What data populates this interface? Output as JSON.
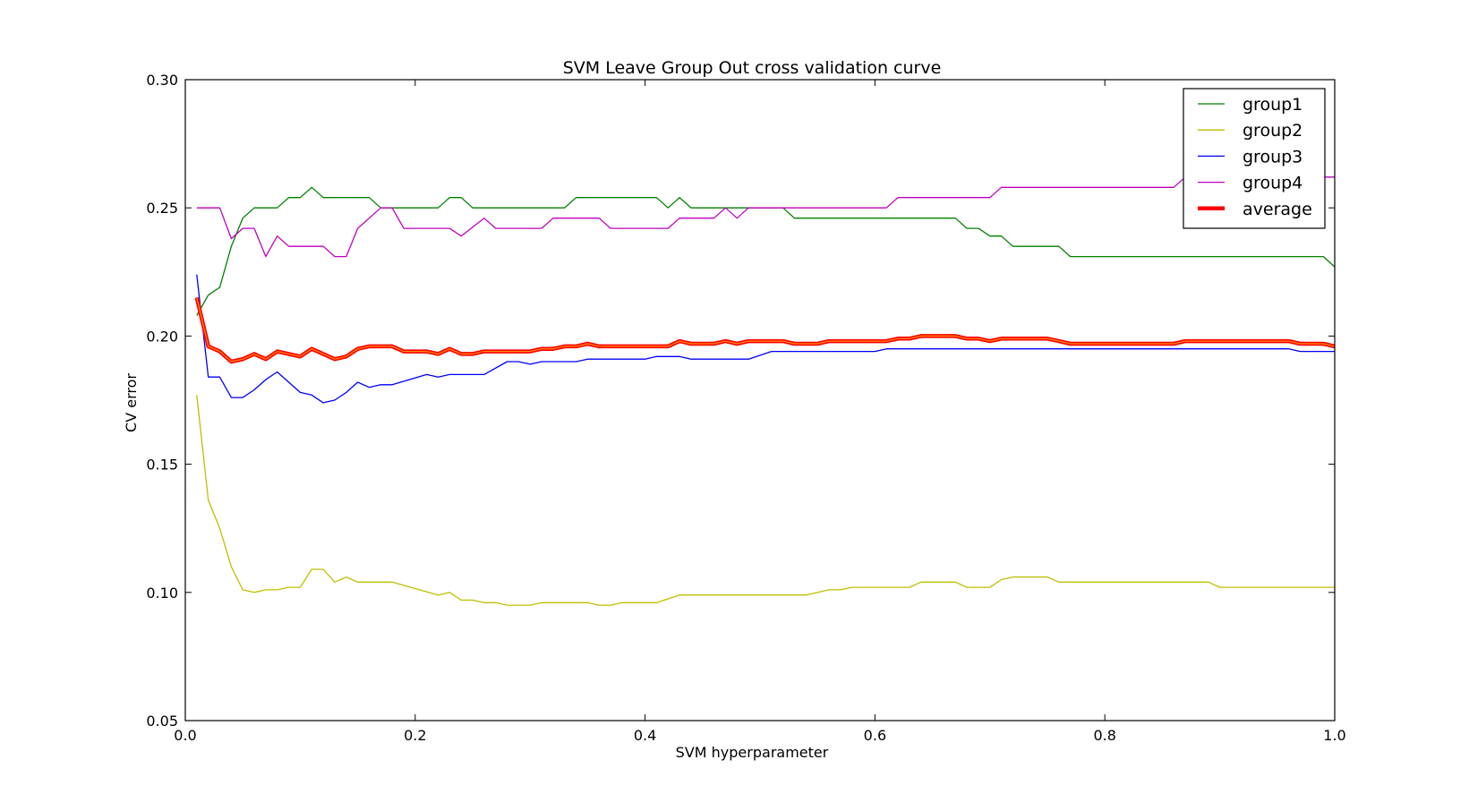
{
  "chart_data": {
    "type": "line",
    "title": "SVM Leave Group Out cross validation curve",
    "xlabel": "SVM hyperparameter",
    "ylabel": "CV error",
    "xlim": [
      0.0,
      1.0
    ],
    "ylim": [
      0.05,
      0.3
    ],
    "xticks": [
      0.0,
      0.2,
      0.4,
      0.6,
      0.8,
      1.0
    ],
    "xtick_labels": [
      "0.0",
      "0.2",
      "0.4",
      "0.6",
      "0.8",
      "1.0"
    ],
    "yticks": [
      0.05,
      0.1,
      0.15,
      0.2,
      0.25,
      0.3
    ],
    "ytick_labels": [
      "0.05",
      "0.10",
      "0.15",
      "0.20",
      "0.25",
      "0.30"
    ],
    "grid": false,
    "legend_position": "top-right",
    "series": [
      {
        "name": "group1",
        "color": "#008000",
        "points": [
          [
            0.01,
            0.208
          ],
          [
            0.02,
            0.216
          ],
          [
            0.03,
            0.219
          ],
          [
            0.04,
            0.235
          ],
          [
            0.05,
            0.246
          ],
          [
            0.06,
            0.25
          ],
          [
            0.08,
            0.25
          ],
          [
            0.09,
            0.254
          ],
          [
            0.1,
            0.254
          ],
          [
            0.11,
            0.258
          ],
          [
            0.12,
            0.254
          ],
          [
            0.16,
            0.254
          ],
          [
            0.17,
            0.25
          ],
          [
            0.22,
            0.25
          ],
          [
            0.23,
            0.254
          ],
          [
            0.24,
            0.254
          ],
          [
            0.25,
            0.25
          ],
          [
            0.33,
            0.25
          ],
          [
            0.34,
            0.254
          ],
          [
            0.41,
            0.254
          ],
          [
            0.42,
            0.25
          ],
          [
            0.43,
            0.254
          ],
          [
            0.44,
            0.25
          ],
          [
            0.52,
            0.25
          ],
          [
            0.53,
            0.246
          ],
          [
            0.67,
            0.246
          ],
          [
            0.68,
            0.242
          ],
          [
            0.69,
            0.242
          ],
          [
            0.7,
            0.239
          ],
          [
            0.71,
            0.239
          ],
          [
            0.72,
            0.235
          ],
          [
            0.76,
            0.235
          ],
          [
            0.77,
            0.231
          ],
          [
            0.99,
            0.231
          ],
          [
            1.0,
            0.227
          ]
        ]
      },
      {
        "name": "group2",
        "color": "#bfbf00",
        "points": [
          [
            0.01,
            0.177
          ],
          [
            0.02,
            0.136
          ],
          [
            0.03,
            0.125
          ],
          [
            0.04,
            0.11
          ],
          [
            0.05,
            0.101
          ],
          [
            0.06,
            0.1
          ],
          [
            0.07,
            0.101
          ],
          [
            0.08,
            0.101
          ],
          [
            0.09,
            0.102
          ],
          [
            0.1,
            0.102
          ],
          [
            0.11,
            0.109
          ],
          [
            0.12,
            0.109
          ],
          [
            0.13,
            0.104
          ],
          [
            0.14,
            0.106
          ],
          [
            0.15,
            0.104
          ],
          [
            0.18,
            0.104
          ],
          [
            0.22,
            0.099
          ],
          [
            0.23,
            0.1
          ],
          [
            0.24,
            0.097
          ],
          [
            0.25,
            0.097
          ],
          [
            0.26,
            0.096
          ],
          [
            0.27,
            0.096
          ],
          [
            0.28,
            0.095
          ],
          [
            0.3,
            0.095
          ],
          [
            0.31,
            0.096
          ],
          [
            0.35,
            0.096
          ],
          [
            0.36,
            0.095
          ],
          [
            0.37,
            0.095
          ],
          [
            0.38,
            0.096
          ],
          [
            0.41,
            0.096
          ],
          [
            0.43,
            0.099
          ],
          [
            0.54,
            0.099
          ],
          [
            0.56,
            0.101
          ],
          [
            0.57,
            0.101
          ],
          [
            0.58,
            0.102
          ],
          [
            0.63,
            0.102
          ],
          [
            0.64,
            0.104
          ],
          [
            0.67,
            0.104
          ],
          [
            0.68,
            0.102
          ],
          [
            0.7,
            0.102
          ],
          [
            0.71,
            0.105
          ],
          [
            0.72,
            0.106
          ],
          [
            0.75,
            0.106
          ],
          [
            0.76,
            0.104
          ],
          [
            0.89,
            0.104
          ],
          [
            0.9,
            0.102
          ],
          [
            1.0,
            0.102
          ]
        ]
      },
      {
        "name": "group3",
        "color": "#0000ff",
        "points": [
          [
            0.01,
            0.224
          ],
          [
            0.02,
            0.184
          ],
          [
            0.03,
            0.184
          ],
          [
            0.04,
            0.176
          ],
          [
            0.05,
            0.176
          ],
          [
            0.06,
            0.179
          ],
          [
            0.07,
            0.183
          ],
          [
            0.08,
            0.186
          ],
          [
            0.09,
            0.182
          ],
          [
            0.1,
            0.178
          ],
          [
            0.11,
            0.177
          ],
          [
            0.12,
            0.174
          ],
          [
            0.13,
            0.175
          ],
          [
            0.14,
            0.178
          ],
          [
            0.15,
            0.182
          ],
          [
            0.16,
            0.18
          ],
          [
            0.17,
            0.181
          ],
          [
            0.18,
            0.181
          ],
          [
            0.21,
            0.185
          ],
          [
            0.22,
            0.184
          ],
          [
            0.23,
            0.185
          ],
          [
            0.26,
            0.185
          ],
          [
            0.28,
            0.19
          ],
          [
            0.29,
            0.19
          ],
          [
            0.3,
            0.189
          ],
          [
            0.31,
            0.19
          ],
          [
            0.34,
            0.19
          ],
          [
            0.35,
            0.191
          ],
          [
            0.4,
            0.191
          ],
          [
            0.41,
            0.192
          ],
          [
            0.43,
            0.192
          ],
          [
            0.44,
            0.191
          ],
          [
            0.49,
            0.191
          ],
          [
            0.51,
            0.194
          ],
          [
            0.6,
            0.194
          ],
          [
            0.61,
            0.195
          ],
          [
            0.96,
            0.195
          ],
          [
            0.97,
            0.194
          ],
          [
            1.0,
            0.194
          ]
        ]
      },
      {
        "name": "group4",
        "color": "#bf00bf",
        "points": [
          [
            0.01,
            0.25
          ],
          [
            0.03,
            0.25
          ],
          [
            0.04,
            0.238
          ],
          [
            0.05,
            0.242
          ],
          [
            0.06,
            0.242
          ],
          [
            0.07,
            0.231
          ],
          [
            0.08,
            0.239
          ],
          [
            0.09,
            0.235
          ],
          [
            0.12,
            0.235
          ],
          [
            0.13,
            0.231
          ],
          [
            0.14,
            0.231
          ],
          [
            0.15,
            0.242
          ],
          [
            0.17,
            0.25
          ],
          [
            0.18,
            0.25
          ],
          [
            0.19,
            0.242
          ],
          [
            0.23,
            0.242
          ],
          [
            0.24,
            0.239
          ],
          [
            0.26,
            0.246
          ],
          [
            0.27,
            0.242
          ],
          [
            0.31,
            0.242
          ],
          [
            0.32,
            0.246
          ],
          [
            0.36,
            0.246
          ],
          [
            0.37,
            0.242
          ],
          [
            0.42,
            0.242
          ],
          [
            0.43,
            0.246
          ],
          [
            0.46,
            0.246
          ],
          [
            0.47,
            0.25
          ],
          [
            0.48,
            0.246
          ],
          [
            0.49,
            0.25
          ],
          [
            0.61,
            0.25
          ],
          [
            0.62,
            0.254
          ],
          [
            0.7,
            0.254
          ],
          [
            0.71,
            0.258
          ],
          [
            0.86,
            0.258
          ],
          [
            0.87,
            0.262
          ],
          [
            1.0,
            0.262
          ]
        ]
      },
      {
        "name": "average",
        "color": "#ff0000",
        "points": [
          [
            0.01,
            0.215
          ],
          [
            0.02,
            0.196
          ],
          [
            0.03,
            0.194
          ],
          [
            0.04,
            0.19
          ],
          [
            0.05,
            0.191
          ],
          [
            0.06,
            0.193
          ],
          [
            0.07,
            0.191
          ],
          [
            0.08,
            0.194
          ],
          [
            0.09,
            0.193
          ],
          [
            0.1,
            0.192
          ],
          [
            0.11,
            0.195
          ],
          [
            0.12,
            0.193
          ],
          [
            0.13,
            0.191
          ],
          [
            0.14,
            0.192
          ],
          [
            0.15,
            0.195
          ],
          [
            0.16,
            0.196
          ],
          [
            0.17,
            0.196
          ],
          [
            0.18,
            0.196
          ],
          [
            0.19,
            0.194
          ],
          [
            0.21,
            0.194
          ],
          [
            0.22,
            0.193
          ],
          [
            0.23,
            0.195
          ],
          [
            0.24,
            0.193
          ],
          [
            0.25,
            0.193
          ],
          [
            0.26,
            0.194
          ],
          [
            0.27,
            0.194
          ],
          [
            0.28,
            0.194
          ],
          [
            0.29,
            0.194
          ],
          [
            0.3,
            0.194
          ],
          [
            0.31,
            0.195
          ],
          [
            0.32,
            0.195
          ],
          [
            0.33,
            0.196
          ],
          [
            0.34,
            0.196
          ],
          [
            0.35,
            0.197
          ],
          [
            0.36,
            0.196
          ],
          [
            0.37,
            0.196
          ],
          [
            0.38,
            0.196
          ],
          [
            0.39,
            0.196
          ],
          [
            0.4,
            0.196
          ],
          [
            0.41,
            0.196
          ],
          [
            0.42,
            0.196
          ],
          [
            0.43,
            0.198
          ],
          [
            0.44,
            0.197
          ],
          [
            0.45,
            0.197
          ],
          [
            0.46,
            0.197
          ],
          [
            0.47,
            0.198
          ],
          [
            0.48,
            0.197
          ],
          [
            0.49,
            0.198
          ],
          [
            0.5,
            0.198
          ],
          [
            0.51,
            0.198
          ],
          [
            0.52,
            0.198
          ],
          [
            0.53,
            0.197
          ],
          [
            0.55,
            0.197
          ],
          [
            0.56,
            0.198
          ],
          [
            0.58,
            0.198
          ],
          [
            0.61,
            0.198
          ],
          [
            0.62,
            0.199
          ],
          [
            0.63,
            0.199
          ],
          [
            0.64,
            0.2
          ],
          [
            0.67,
            0.2
          ],
          [
            0.68,
            0.199
          ],
          [
            0.69,
            0.199
          ],
          [
            0.7,
            0.198
          ],
          [
            0.71,
            0.199
          ],
          [
            0.72,
            0.199
          ],
          [
            0.75,
            0.199
          ],
          [
            0.76,
            0.198
          ],
          [
            0.77,
            0.197
          ],
          [
            0.86,
            0.197
          ],
          [
            0.87,
            0.198
          ],
          [
            0.89,
            0.198
          ],
          [
            0.9,
            0.198
          ],
          [
            0.96,
            0.198
          ],
          [
            0.97,
            0.197
          ],
          [
            0.99,
            0.197
          ],
          [
            1.0,
            0.196
          ]
        ]
      }
    ]
  }
}
